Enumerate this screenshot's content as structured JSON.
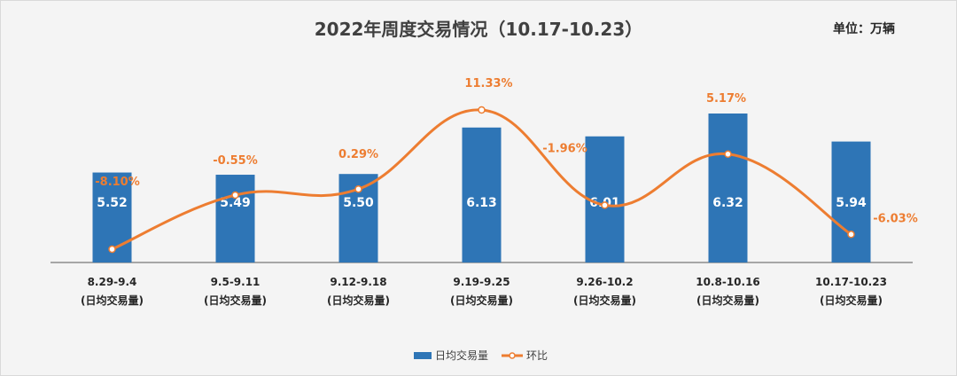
{
  "chart_data": {
    "type": "bar",
    "title": "2022年周度交易情况（10.17-10.23）",
    "unit": "单位：万辆",
    "categories": [
      "8.29-9.4",
      "9.5-9.11",
      "9.12-9.18",
      "9.19-9.25",
      "9.26-10.2",
      "10.8-10.16",
      "10.17-10.23"
    ],
    "category_sub": "(日均交易量)",
    "series": [
      {
        "name": "日均交易量",
        "type": "bar",
        "color": "#2e75b6",
        "values": [
          5.52,
          5.49,
          5.5,
          6.13,
          6.01,
          6.32,
          5.94
        ],
        "labels": [
          "5.52",
          "5.49",
          "5.50",
          "6.13",
          "6.01",
          "6.32",
          "5.94"
        ]
      },
      {
        "name": "环比",
        "type": "line",
        "color": "#ed7d31",
        "values": [
          -8.1,
          -0.55,
          0.29,
          11.33,
          -1.96,
          5.17,
          -6.03
        ],
        "labels": [
          "-8.10%",
          "-0.55%",
          "0.29%",
          "11.33%",
          "-1.96%",
          "5.17%",
          "-6.03%"
        ]
      }
    ],
    "legend_position": "bottom",
    "grid": false
  }
}
